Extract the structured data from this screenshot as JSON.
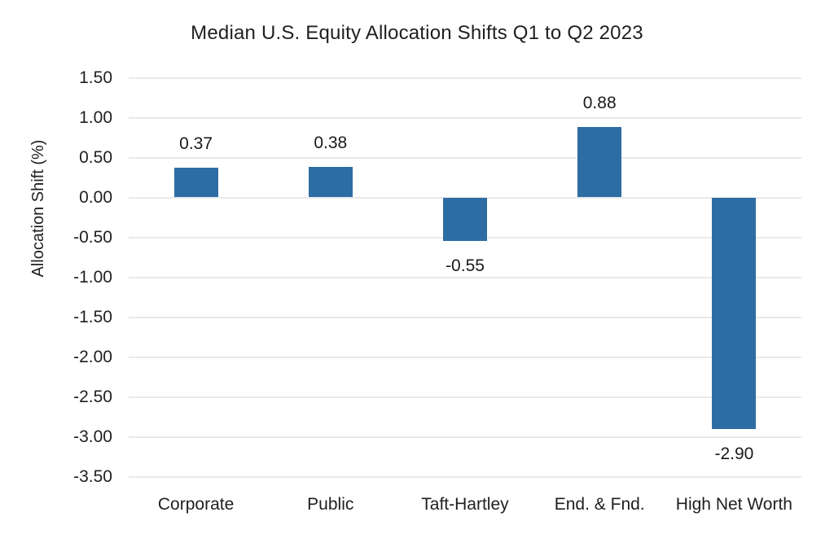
{
  "chart_data": {
    "type": "bar",
    "title": "Median U.S. Equity Allocation Shifts Q1 to Q2 2023",
    "xlabel": "",
    "ylabel": "Allocation Shift (%)",
    "categories": [
      "Corporate",
      "Public",
      "Taft-Hartley",
      "End. & Fnd.",
      "High Net Worth"
    ],
    "values": [
      0.37,
      0.38,
      -0.55,
      0.88,
      -2.9
    ],
    "value_labels": [
      "0.37",
      "0.38",
      "-0.55",
      "0.88",
      "-2.90"
    ],
    "y_ticks": [
      "1.50",
      "1.00",
      "0.50",
      "0.00",
      "-0.50",
      "-1.00",
      "-1.50",
      "-2.00",
      "-2.50",
      "-3.00",
      "-3.50"
    ],
    "ylim": [
      -3.5,
      1.5
    ],
    "y_step": 0.5,
    "grid": true,
    "legend": false,
    "bar_color": "#2E6DA4",
    "gridline_color": "#E9E9E9",
    "text_color": "#1F1F1F",
    "background_color": "#FFFFFF"
  }
}
